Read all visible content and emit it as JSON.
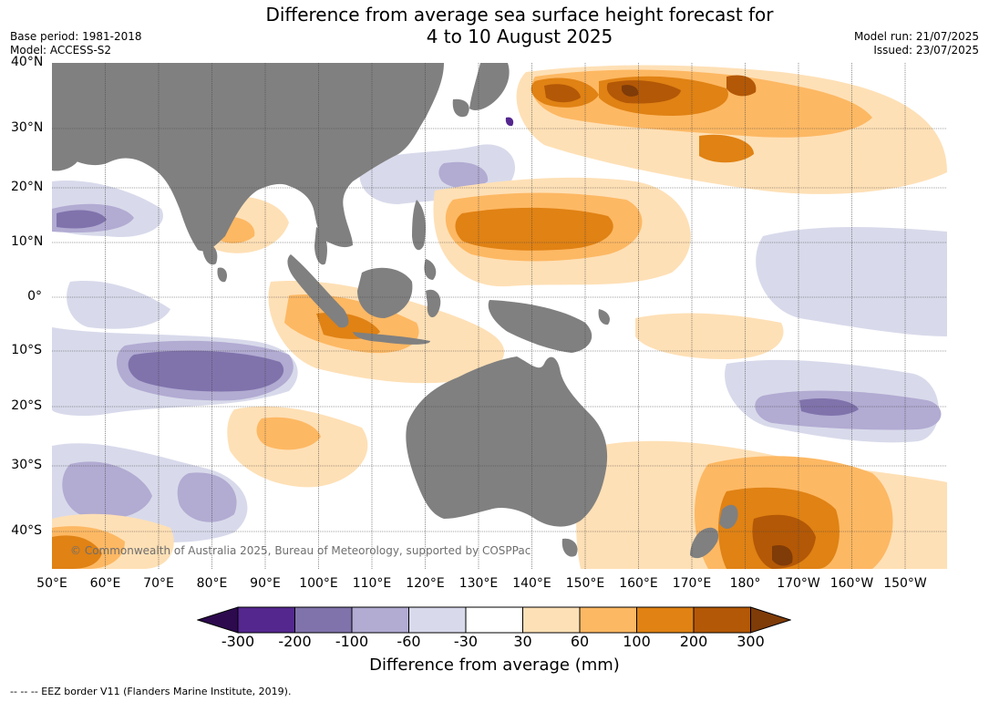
{
  "header": {
    "title_line1": "Difference from average sea surface height forecast for",
    "title_line2": "4 to 10 August 2025",
    "base_period": "Base period: 1981-2018",
    "model": "Model: ACCESS-S2",
    "model_run": "Model run: 21/07/2025",
    "issued": "Issued: 23/07/2025"
  },
  "map": {
    "lat_labels": [
      "40°N",
      "30°N",
      "20°N",
      "10°N",
      "0°",
      "10°S",
      "20°S",
      "30°S",
      "40°S"
    ],
    "lon_labels": [
      "50°E",
      "60°E",
      "70°E",
      "80°E",
      "90°E",
      "100°E",
      "110°E",
      "120°E",
      "130°E",
      "140°E",
      "150°E",
      "160°E",
      "170°E",
      "180°",
      "170°W",
      "160°W",
      "150°W"
    ],
    "land_color": "#808080",
    "copyright": "© Commonwealth of Australia 2025, Bureau of Meteorology, supported by COSPPac"
  },
  "legend": {
    "title": "Difference from average (mm)",
    "ticks": [
      "-300",
      "-200",
      "-100",
      "-60",
      "-30",
      "30",
      "60",
      "100",
      "200",
      "300"
    ],
    "colors": {
      "below_-300": "#2d0a4e",
      "-300_-200": "#54278f",
      "-200_-100": "#8073ac",
      "-100_-60": "#b2abd2",
      "-60_-30": "#d8daeb",
      "-30_30": "#ffffff",
      "30_60": "#fee0b6",
      "60_100": "#fdb863",
      "100_200": "#e08214",
      "200_300": "#b35806",
      "above_300": "#7f3b08"
    }
  },
  "footer": "--  --  -- EEZ border V11 (Flanders Marine Institute, 2019)."
}
